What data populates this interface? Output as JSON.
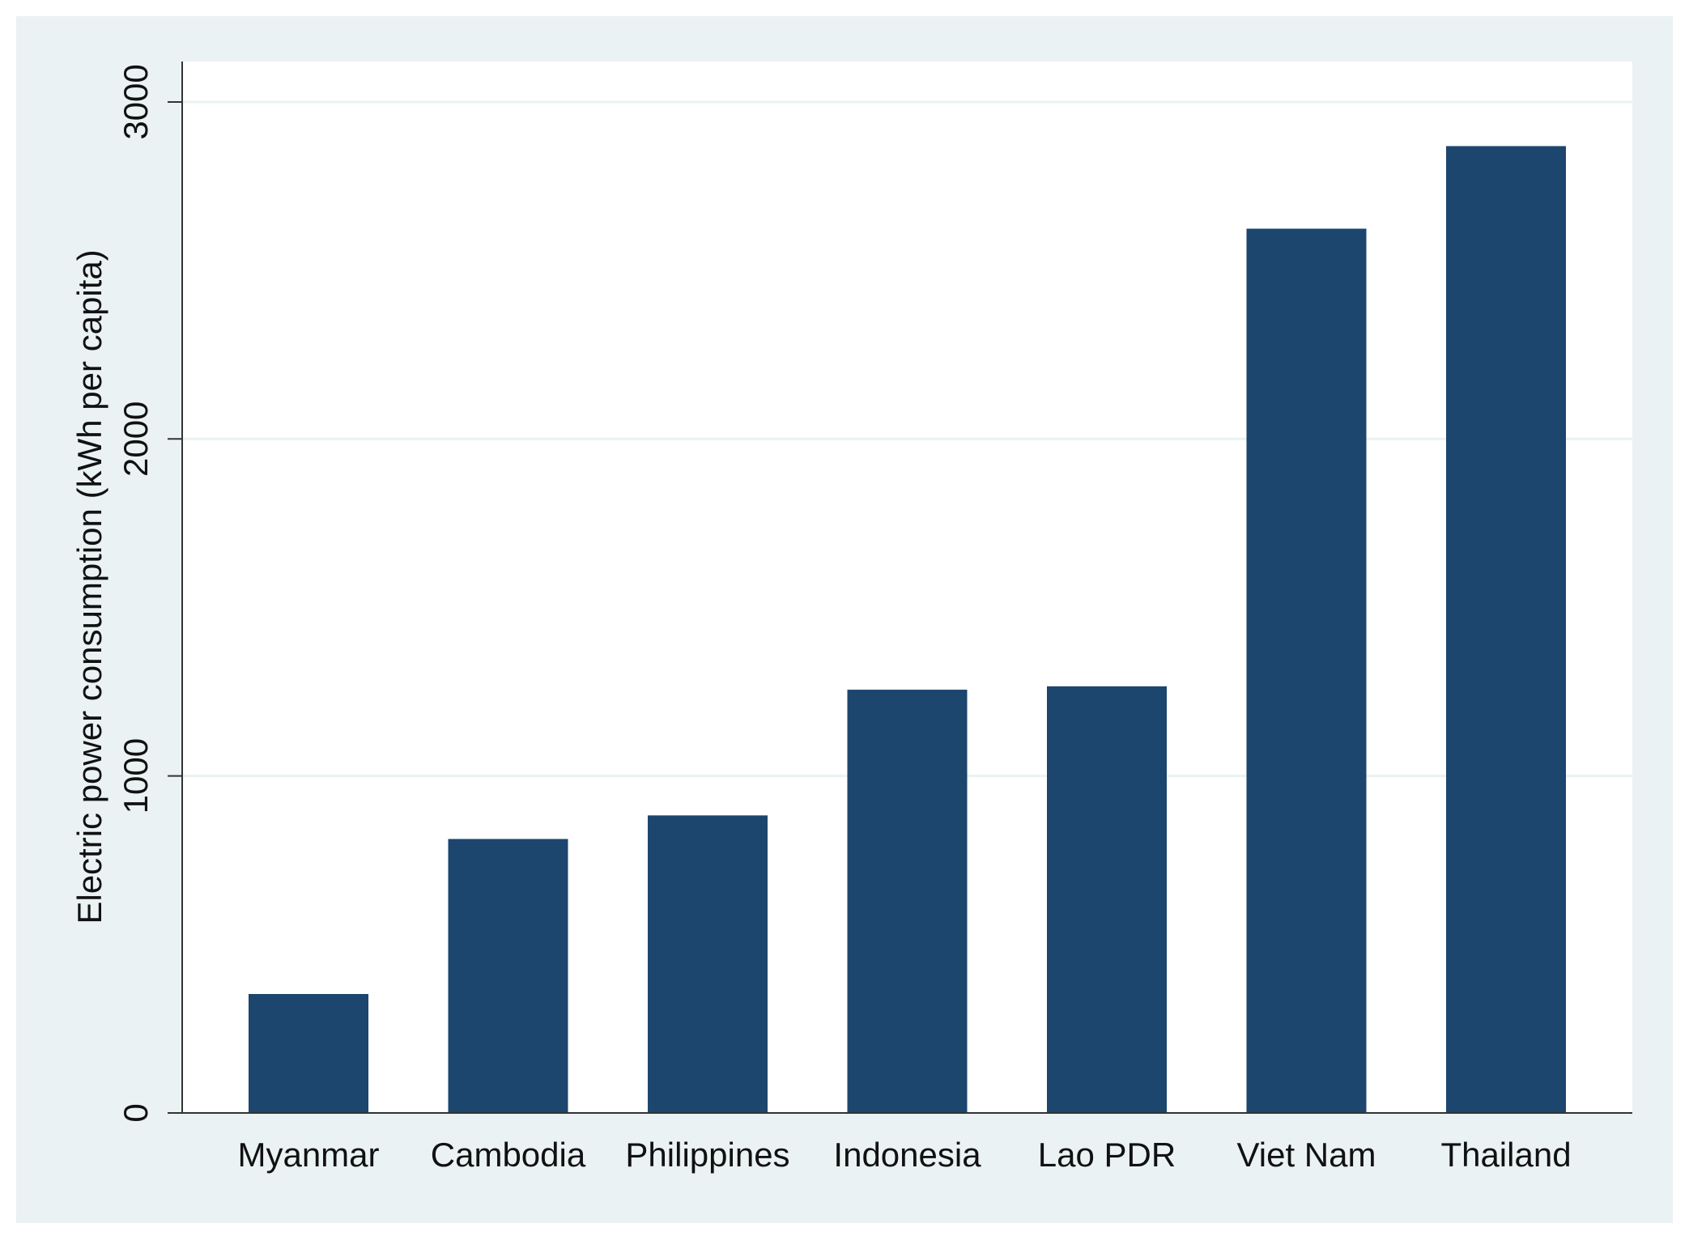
{
  "chart_data": {
    "type": "bar",
    "y_label": "Electric power consumption (kWh per capita)",
    "categories": [
      "Myanmar",
      "Cambodia",
      "Philippines",
      "Indonesia",
      "Lao PDR",
      "Viet Nam",
      "Thailand"
    ],
    "values": [
      353,
      813,
      883,
      1256,
      1266,
      2624,
      2869
    ],
    "color": "#1c466e",
    "ylim": [
      0,
      3120
    ],
    "yticks": [
      0,
      1000,
      2000,
      3000
    ],
    "grid": true
  }
}
